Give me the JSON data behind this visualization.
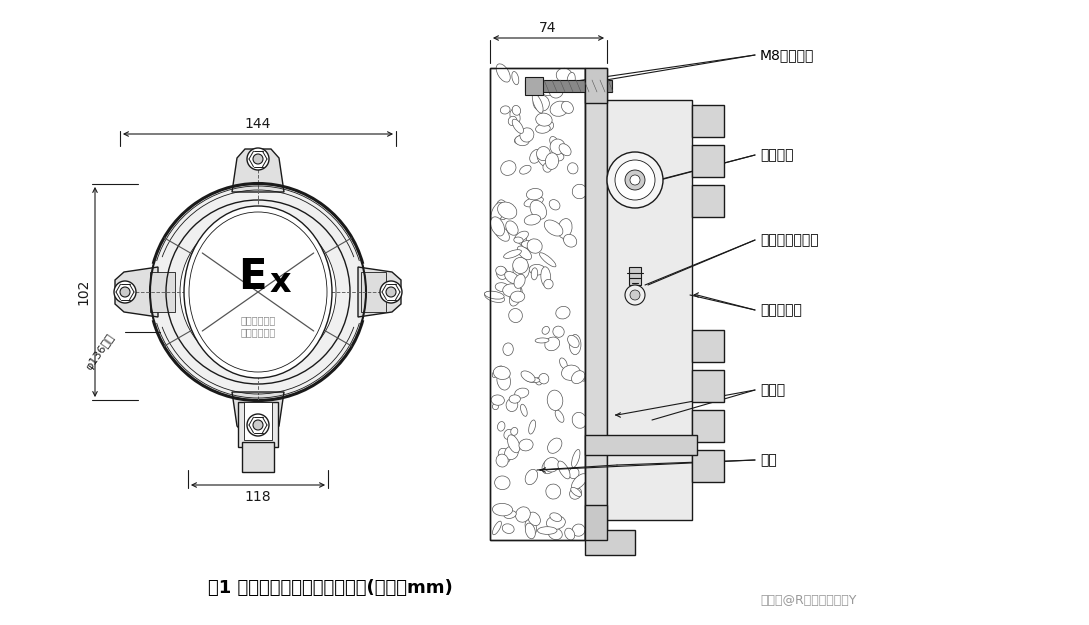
{
  "bg_color": "#ffffff",
  "line_color": "#1a1a1a",
  "title": "图1 变送器外形尺和安装孔位图(单位：mm)",
  "watermark": "搜狐号@R润越环保科技Y",
  "label_M8": "M8膨胀螺栓",
  "label_wire": "接线通孔",
  "label_ground": "接地螺丝固定处",
  "label_aluminum": "铝合金壳体",
  "label_sensor": "传感器",
  "label_wall": "墙体",
  "label_ex": "Ex",
  "label_warning1": "易燃易爆场所",
  "label_warning2": "断电源后开盖",
  "dim_144": "144",
  "dim_74": "74",
  "dim_102": "102",
  "dim_118": "118",
  "dim_phi136": "φ136均布",
  "fig_width": 10.89,
  "fig_height": 6.25
}
